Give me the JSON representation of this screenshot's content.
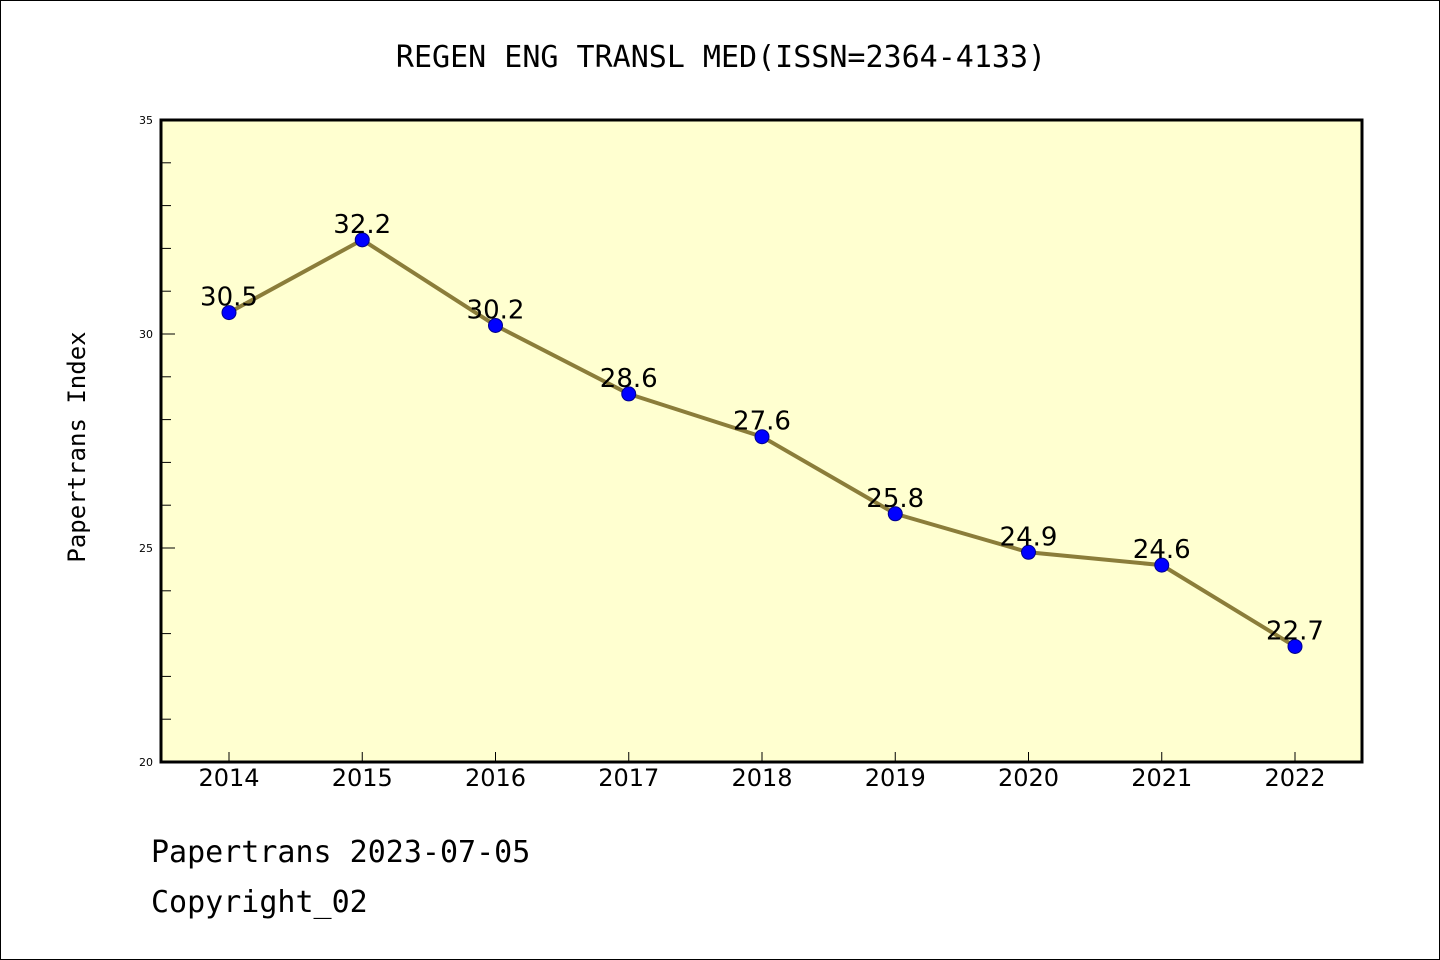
{
  "chart_data": {
    "type": "line",
    "title": "REGEN ENG TRANSL MED(ISSN=2364-4133)",
    "xlabel": "",
    "ylabel": "Papertrans Index",
    "categories": [
      "2014",
      "2015",
      "2016",
      "2017",
      "2018",
      "2019",
      "2020",
      "2021",
      "2022"
    ],
    "series": [
      {
        "values": [
          30.5,
          32.2,
          30.2,
          28.6,
          27.6,
          25.8,
          24.9,
          24.6,
          22.7
        ]
      }
    ],
    "data_labels": [
      "30.5",
      "32.2",
      "30.2",
      "28.6",
      "27.6",
      "25.8",
      "24.9",
      "24.6",
      "22.7"
    ],
    "ylim": [
      20,
      35
    ],
    "y_ticks": [
      "20",
      "25",
      "30",
      "35"
    ],
    "grid": false,
    "colors": {
      "plot_background": "#ffffd0",
      "line": "#8b7d3a",
      "marker": "#0000ff"
    }
  },
  "footer": {
    "line1": "Papertrans 2023-07-05",
    "line2": "Copyright_02"
  }
}
